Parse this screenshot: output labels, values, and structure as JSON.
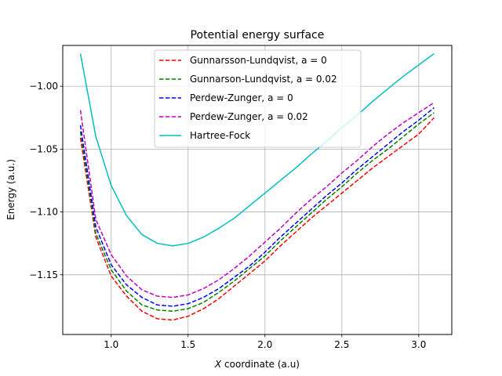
{
  "chart_data": {
    "type": "line",
    "title": "Potential energy surface",
    "xlabel_italic": "X",
    "xlabel_rest": " coordinate (a.u)",
    "ylabel": "Energy (a.u.)",
    "xlim": [
      0.685,
      3.215
    ],
    "ylim": [
      -1.1975,
      -0.9675
    ],
    "xticks": [
      1.0,
      1.5,
      2.0,
      2.5,
      3.0
    ],
    "xtick_labels": [
      "1.0",
      "1.5",
      "2.0",
      "2.5",
      "3.0"
    ],
    "yticks": [
      -1.15,
      -1.1,
      -1.05,
      -1.0
    ],
    "ytick_labels": [
      "−1.15",
      "−1.10",
      "−1.05",
      "−1.00"
    ],
    "grid": true,
    "legend_position": "top-center",
    "x": [
      0.8,
      0.9,
      1.0,
      1.1,
      1.2,
      1.3,
      1.4,
      1.5,
      1.6,
      1.7,
      1.8,
      1.9,
      2.0,
      2.1,
      2.2,
      2.3,
      2.4,
      2.5,
      2.6,
      2.7,
      2.8,
      2.9,
      3.0,
      3.1
    ],
    "series": [
      {
        "name": "Gunnarsson-Lundqvist, ",
        "name_param": "a = 0",
        "color": "#ff0000",
        "dashed": true,
        "values": [
          -1.041,
          -1.12,
          -1.151,
          -1.167,
          -1.179,
          -1.185,
          -1.186,
          -1.183,
          -1.177,
          -1.169,
          -1.159,
          -1.149,
          -1.139,
          -1.127,
          -1.116,
          -1.105,
          -1.095,
          -1.085,
          -1.075,
          -1.065,
          -1.056,
          -1.047,
          -1.038,
          -1.025
        ]
      },
      {
        "name": "Gunnarson-Lundqvist, ",
        "name_param": "a = 0.02",
        "color": "#008000",
        "dashed": true,
        "values": [
          -1.036,
          -1.117,
          -1.146,
          -1.163,
          -1.174,
          -1.178,
          -1.179,
          -1.177,
          -1.172,
          -1.164,
          -1.155,
          -1.145,
          -1.135,
          -1.123,
          -1.112,
          -1.101,
          -1.09,
          -1.08,
          -1.069,
          -1.059,
          -1.05,
          -1.04,
          -1.03,
          -1.021
        ]
      },
      {
        "name": "Perdew-Zunger, ",
        "name_param": "a = 0",
        "color": "#0000ff",
        "dashed": true,
        "values": [
          -1.031,
          -1.112,
          -1.142,
          -1.158,
          -1.168,
          -1.174,
          -1.175,
          -1.173,
          -1.168,
          -1.161,
          -1.152,
          -1.143,
          -1.132,
          -1.12,
          -1.109,
          -1.098,
          -1.087,
          -1.077,
          -1.066,
          -1.056,
          -1.046,
          -1.036,
          -1.027,
          -1.017
        ]
      },
      {
        "name": "Perdew-Zunger, ",
        "name_param": "a = 0.02",
        "color": "#bf00bf",
        "dashed": true,
        "values": [
          -1.019,
          -1.106,
          -1.134,
          -1.151,
          -1.162,
          -1.167,
          -1.168,
          -1.166,
          -1.161,
          -1.154,
          -1.145,
          -1.135,
          -1.124,
          -1.113,
          -1.101,
          -1.09,
          -1.08,
          -1.069,
          -1.059,
          -1.048,
          -1.038,
          -1.029,
          -1.021,
          -1.013
        ]
      },
      {
        "name": "Hartree-Fock",
        "name_param": "",
        "color": "#00bfbf",
        "dashed": false,
        "values": [
          -0.974,
          -1.04,
          -1.079,
          -1.103,
          -1.118,
          -1.125,
          -1.127,
          -1.125,
          -1.12,
          -1.113,
          -1.105,
          -1.095,
          -1.085,
          -1.075,
          -1.065,
          -1.054,
          -1.044,
          -1.033,
          -1.023,
          -1.012,
          -1.002,
          -0.992,
          -0.983,
          -0.974
        ]
      }
    ]
  }
}
